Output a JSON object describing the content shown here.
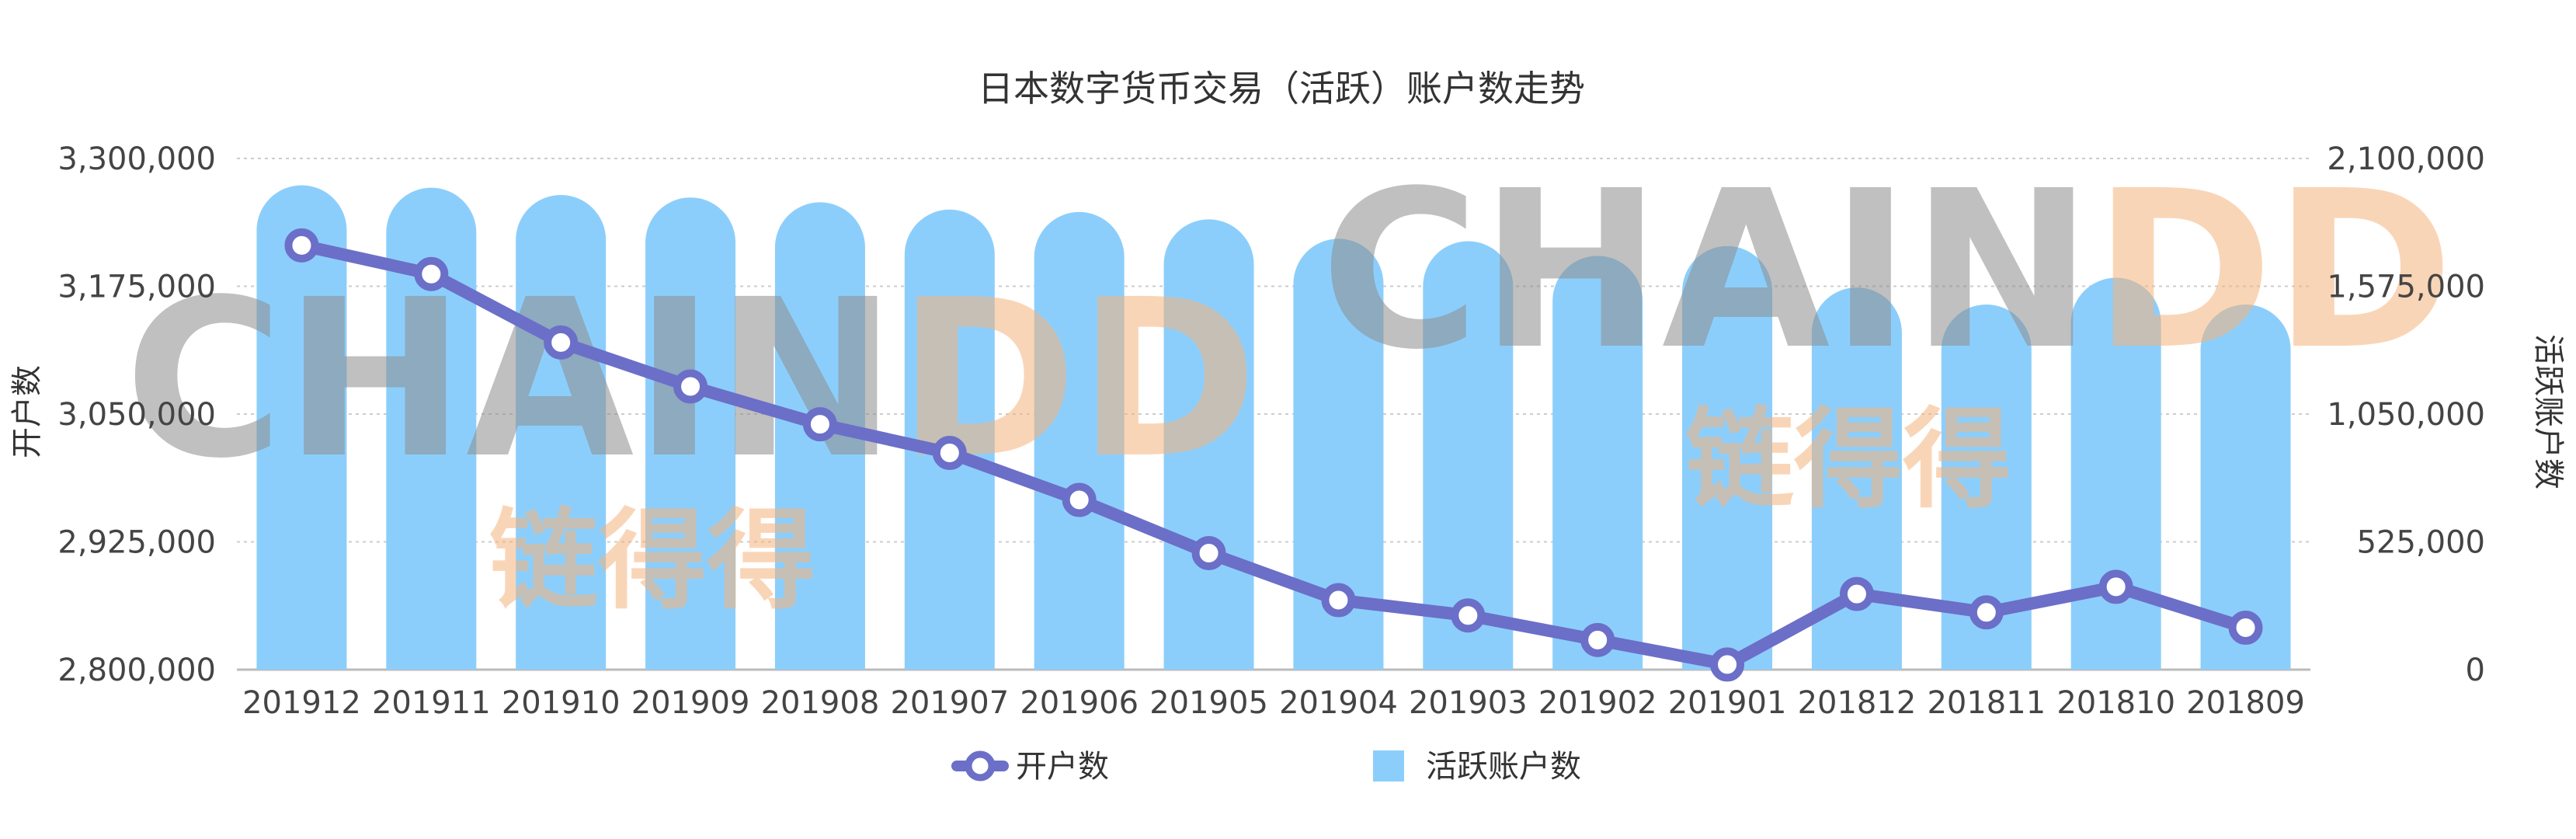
{
  "chart_data": {
    "type": "bar+line",
    "title": "日本数字货币交易（活跃）账户数走势",
    "categories": [
      "201912",
      "201911",
      "201910",
      "201909",
      "201908",
      "201907",
      "201906",
      "201905",
      "201904",
      "201903",
      "201902",
      "201901",
      "201812",
      "201811",
      "201810",
      "201809"
    ],
    "series": [
      {
        "name": "活跃账户数",
        "type": "bar",
        "axis": "right",
        "color": "#8ccefb",
        "values": [
          1990000,
          1980000,
          1950000,
          1940000,
          1920000,
          1890000,
          1880000,
          1850000,
          1770000,
          1760000,
          1700000,
          1740000,
          1570000,
          1500000,
          1610000,
          1500000
        ]
      },
      {
        "name": "开户数",
        "type": "line",
        "axis": "left",
        "color": "#6b6fc8",
        "values": [
          3215000,
          3187000,
          3120000,
          3077000,
          3040000,
          3012000,
          2966000,
          2914000,
          2868000,
          2853000,
          2829000,
          2805000,
          2874000,
          2856000,
          2881000,
          2841000
        ]
      }
    ],
    "y_left": {
      "label": "开户数",
      "range": [
        2800000,
        3300000
      ],
      "ticks": [
        "2,800,000",
        "2,925,000",
        "3,050,000",
        "3,175,000",
        "3,300,000"
      ]
    },
    "y_right": {
      "label": "活跃账户数",
      "range": [
        0,
        2100000
      ],
      "ticks": [
        "0",
        "525,000",
        "1,050,000",
        "1,575,000",
        "2,100,000"
      ]
    },
    "grid": true,
    "legend": {
      "placement": "bottom-center",
      "items": [
        "开户数",
        "活跃账户数"
      ]
    }
  },
  "watermark": {
    "brand_grey": "CHAIN",
    "brand_orange": "DD",
    "chinese": "链得得",
    "grey_color": "#8e8e8e",
    "orange_color": "#f5b47d"
  }
}
